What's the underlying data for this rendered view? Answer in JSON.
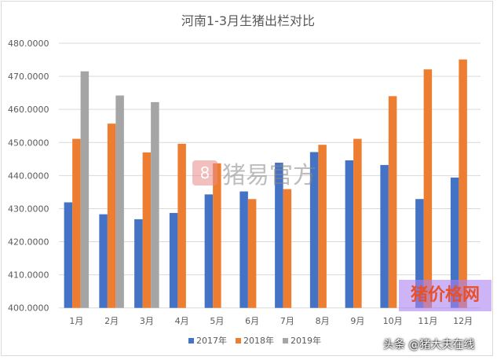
{
  "chart_data": {
    "type": "bar",
    "title": "河南1-3月生猪出栏对比",
    "categories": [
      "1月",
      "2月",
      "3月",
      "4月",
      "5月",
      "6月",
      "7月",
      "8月",
      "9月",
      "10月",
      "11月",
      "12月"
    ],
    "series": [
      {
        "name": "2017年",
        "color": "#4472c4",
        "values": [
          431.9,
          428.3,
          426.8,
          428.7,
          434.3,
          435.2,
          443.9,
          447.1,
          444.6,
          443.2,
          432.9,
          439.4
        ]
      },
      {
        "name": "2018年",
        "color": "#ed7d31",
        "values": [
          451.1,
          455.7,
          447.0,
          449.6,
          443.7,
          432.9,
          435.9,
          449.3,
          451.1,
          464.0,
          472.1,
          475.1
        ]
      },
      {
        "name": "2019年",
        "color": "#a5a5a5",
        "values": [
          471.5,
          464.2,
          462.2,
          null,
          null,
          null,
          null,
          null,
          null,
          null,
          null,
          null
        ]
      }
    ],
    "ylim": [
      400,
      480
    ],
    "yticks": [
      "400.0000",
      "410.0000",
      "420.0000",
      "430.0000",
      "440.0000",
      "450.0000",
      "460.0000",
      "470.0000",
      "480.0000"
    ],
    "grid": true,
    "legend": "bottom"
  },
  "watermarks": {
    "center": "猪易官方",
    "center_logo": "8",
    "bottom_right": "猪价格网",
    "bottom": "头条 @猪大夫在线"
  }
}
